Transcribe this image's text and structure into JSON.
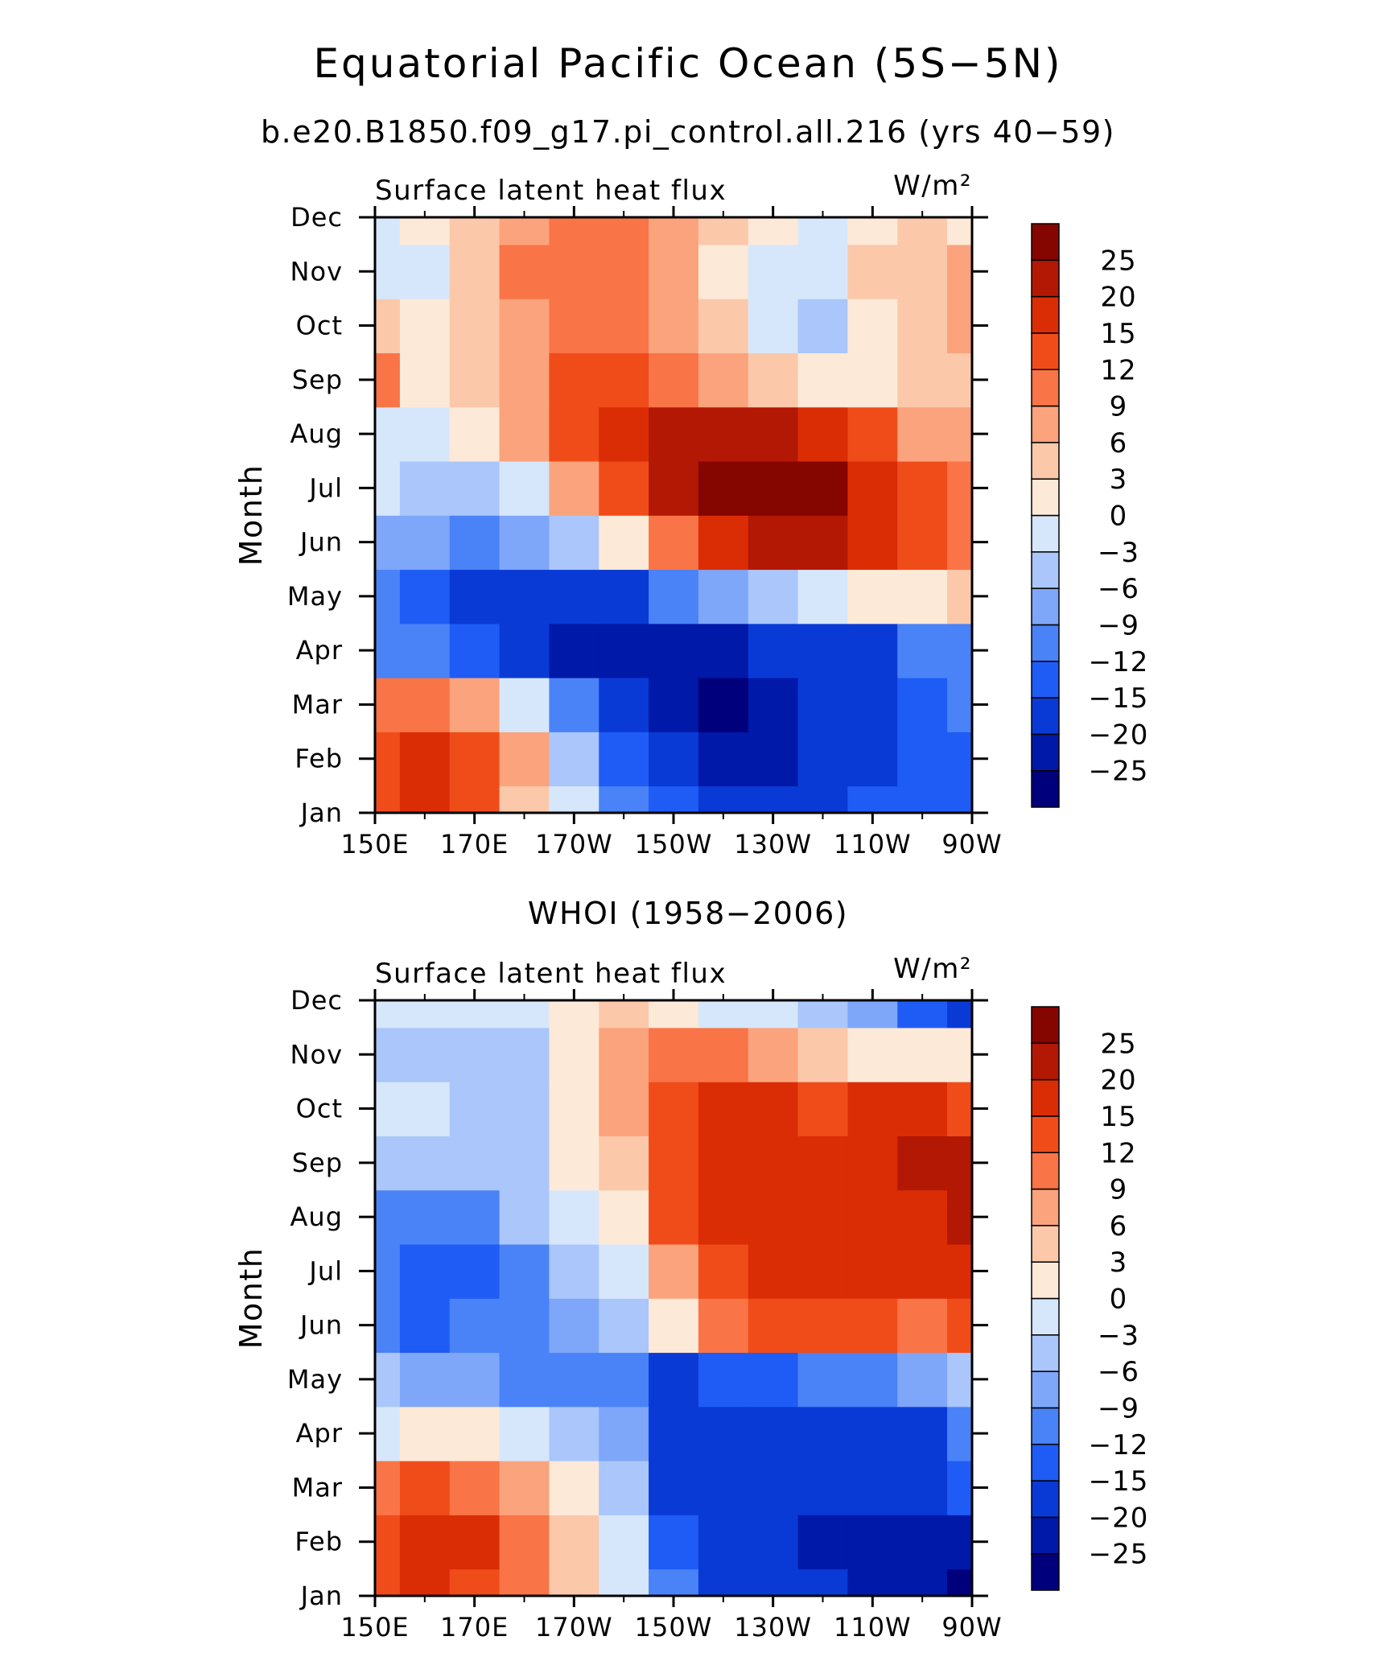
{
  "figure": {
    "title": "Equatorial Pacific Ocean (5S−5N)"
  },
  "colors": {
    "levels": [
      "#00007d",
      "#0019a8",
      "#0a3ad6",
      "#1e5cf5",
      "#4a82f7",
      "#7ea6f9",
      "#aac6fa",
      "#d6e7fb",
      "#fde9d7",
      "#fcc8aa",
      "#fba37c",
      "#f97447",
      "#f04c1a",
      "#db2d05",
      "#b31805",
      "#850500"
    ]
  },
  "chart_data": [
    {
      "type": "heatmap",
      "subtitle": "b.e20.B1850.f09_g17.pi_control.all.216 (yrs 40−59)",
      "left_label": "Surface latent heat flux",
      "units_label": "W/m²",
      "ylabel": "Month",
      "x_ticks": [
        "150E",
        "170E",
        "170W",
        "150W",
        "130W",
        "110W",
        "90W"
      ],
      "y_ticks": [
        "Jan",
        "Feb",
        "Mar",
        "Apr",
        "May",
        "Jun",
        "Jul",
        "Aug",
        "Sep",
        "Oct",
        "Nov",
        "Dec"
      ],
      "x": [
        "150E",
        "160E",
        "170E",
        "180",
        "170W",
        "160W",
        "150W",
        "140W",
        "130W",
        "120W",
        "110W",
        "100W",
        "90W"
      ],
      "y": [
        "Jan",
        "Feb",
        "Mar",
        "Apr",
        "May",
        "Jun",
        "Jul",
        "Aug",
        "Sep",
        "Oct",
        "Nov",
        "Dec"
      ],
      "values": [
        [
          14,
          16,
          12,
          4,
          -2,
          -10,
          -14,
          -16,
          -17,
          -17,
          -15,
          -14,
          -13
        ],
        [
          13,
          19,
          14,
          6,
          -4,
          -13,
          -18,
          -21,
          -21,
          -20,
          -17,
          -14,
          -13
        ],
        [
          9,
          11,
          6,
          -2,
          -12,
          -20,
          -22,
          -26,
          -22,
          -20,
          -17,
          -13,
          -12
        ],
        [
          -10,
          -12,
          -14,
          -18,
          -21,
          -22,
          -22,
          -21,
          -20,
          -19,
          -17,
          -12,
          -11
        ],
        [
          -12,
          -14,
          -16,
          -18,
          -19,
          -16,
          -12,
          -9,
          -6,
          -3,
          0,
          2,
          3
        ],
        [
          -8,
          -9,
          -10,
          -8,
          -4,
          2,
          9,
          15,
          22,
          22,
          18,
          12,
          9
        ],
        [
          -3,
          -5,
          -4,
          -2,
          6,
          14,
          20,
          25,
          28,
          27,
          18,
          12,
          10
        ],
        [
          -1,
          -2,
          2,
          8,
          14,
          18,
          20,
          22,
          20,
          17,
          12,
          8,
          7
        ],
        [
          10,
          2,
          4,
          8,
          14,
          12,
          10,
          8,
          5,
          2,
          1,
          3,
          4
        ],
        [
          4,
          1,
          5,
          7,
          9,
          9,
          6,
          3,
          -2,
          -4,
          2,
          4,
          6
        ],
        [
          -2,
          -3,
          5,
          9,
          10,
          10,
          8,
          1,
          -2,
          -1,
          4,
          5,
          6
        ],
        [
          -1,
          0,
          4,
          7,
          9,
          9,
          7,
          3,
          0,
          -1,
          2,
          3,
          2
        ]
      ],
      "zlevels": [
        -25,
        -20,
        -15,
        -12,
        -9,
        -6,
        -3,
        0,
        3,
        6,
        9,
        12,
        15,
        20,
        25
      ],
      "colorbar_labels": [
        "25",
        "20",
        "15",
        "12",
        "9",
        "6",
        "3",
        "0",
        "−3",
        "−6",
        "−9",
        "−12",
        "−15",
        "−20",
        "−25"
      ]
    },
    {
      "type": "heatmap",
      "subtitle": "WHOI (1958−2006)",
      "left_label": "Surface latent heat flux",
      "units_label": "W/m²",
      "ylabel": "Month",
      "x_ticks": [
        "150E",
        "170E",
        "170W",
        "150W",
        "130W",
        "110W",
        "90W"
      ],
      "y_ticks": [
        "Jan",
        "Feb",
        "Mar",
        "Apr",
        "May",
        "Jun",
        "Jul",
        "Aug",
        "Sep",
        "Oct",
        "Nov",
        "Dec"
      ],
      "x": [
        "150E",
        "160E",
        "170E",
        "180",
        "170W",
        "160W",
        "150W",
        "140W",
        "130W",
        "120W",
        "110W",
        "100W",
        "90W"
      ],
      "y": [
        "Jan",
        "Feb",
        "Mar",
        "Apr",
        "May",
        "Jun",
        "Jul",
        "Aug",
        "Sep",
        "Oct",
        "Nov",
        "Dec"
      ],
      "values": [
        [
          12,
          16,
          14,
          10,
          4,
          -2,
          -12,
          -16,
          -18,
          -20,
          -22,
          -24,
          -27
        ],
        [
          14,
          17,
          16,
          11,
          5,
          -3,
          -15,
          -18,
          -19,
          -21,
          -23,
          -24,
          -23
        ],
        [
          10,
          12,
          9,
          6,
          1,
          -5,
          -16,
          -19,
          -17,
          -18,
          -19,
          -17,
          -14
        ],
        [
          -1,
          1,
          0,
          -3,
          -6,
          -9,
          -16,
          -18,
          -17,
          -18,
          -19,
          -16,
          -11
        ],
        [
          -6,
          -8,
          -9,
          -10,
          -11,
          -12,
          -16,
          -15,
          -13,
          -12,
          -11,
          -8,
          -6
        ],
        [
          -11,
          -13,
          -12,
          -12,
          -9,
          -6,
          2,
          10,
          14,
          14,
          12,
          11,
          12
        ],
        [
          -12,
          -15,
          -13,
          -10,
          -6,
          -1,
          8,
          14,
          17,
          18,
          18,
          18,
          19
        ],
        [
          -10,
          -12,
          -11,
          -6,
          -2,
          2,
          14,
          18,
          17,
          16,
          18,
          19,
          20
        ],
        [
          -4,
          -5,
          -4,
          -6,
          0,
          5,
          14,
          17,
          17,
          16,
          18,
          20,
          23
        ],
        [
          -2,
          -2,
          -5,
          -4,
          1,
          6,
          12,
          15,
          16,
          13,
          15,
          15,
          14
        ],
        [
          -4,
          -4,
          -6,
          -4,
          2,
          6,
          9,
          10,
          8,
          4,
          2,
          0,
          0
        ],
        [
          -1,
          -2,
          -1,
          -1,
          1,
          3,
          2,
          -1,
          -3,
          -6,
          -9,
          -13,
          -17
        ]
      ],
      "zlevels": [
        -25,
        -20,
        -15,
        -12,
        -9,
        -6,
        -3,
        0,
        3,
        6,
        9,
        12,
        15,
        20,
        25
      ],
      "colorbar_labels": [
        "25",
        "20",
        "15",
        "12",
        "9",
        "6",
        "3",
        "0",
        "−3",
        "−6",
        "−9",
        "−12",
        "−15",
        "−20",
        "−25"
      ]
    }
  ]
}
